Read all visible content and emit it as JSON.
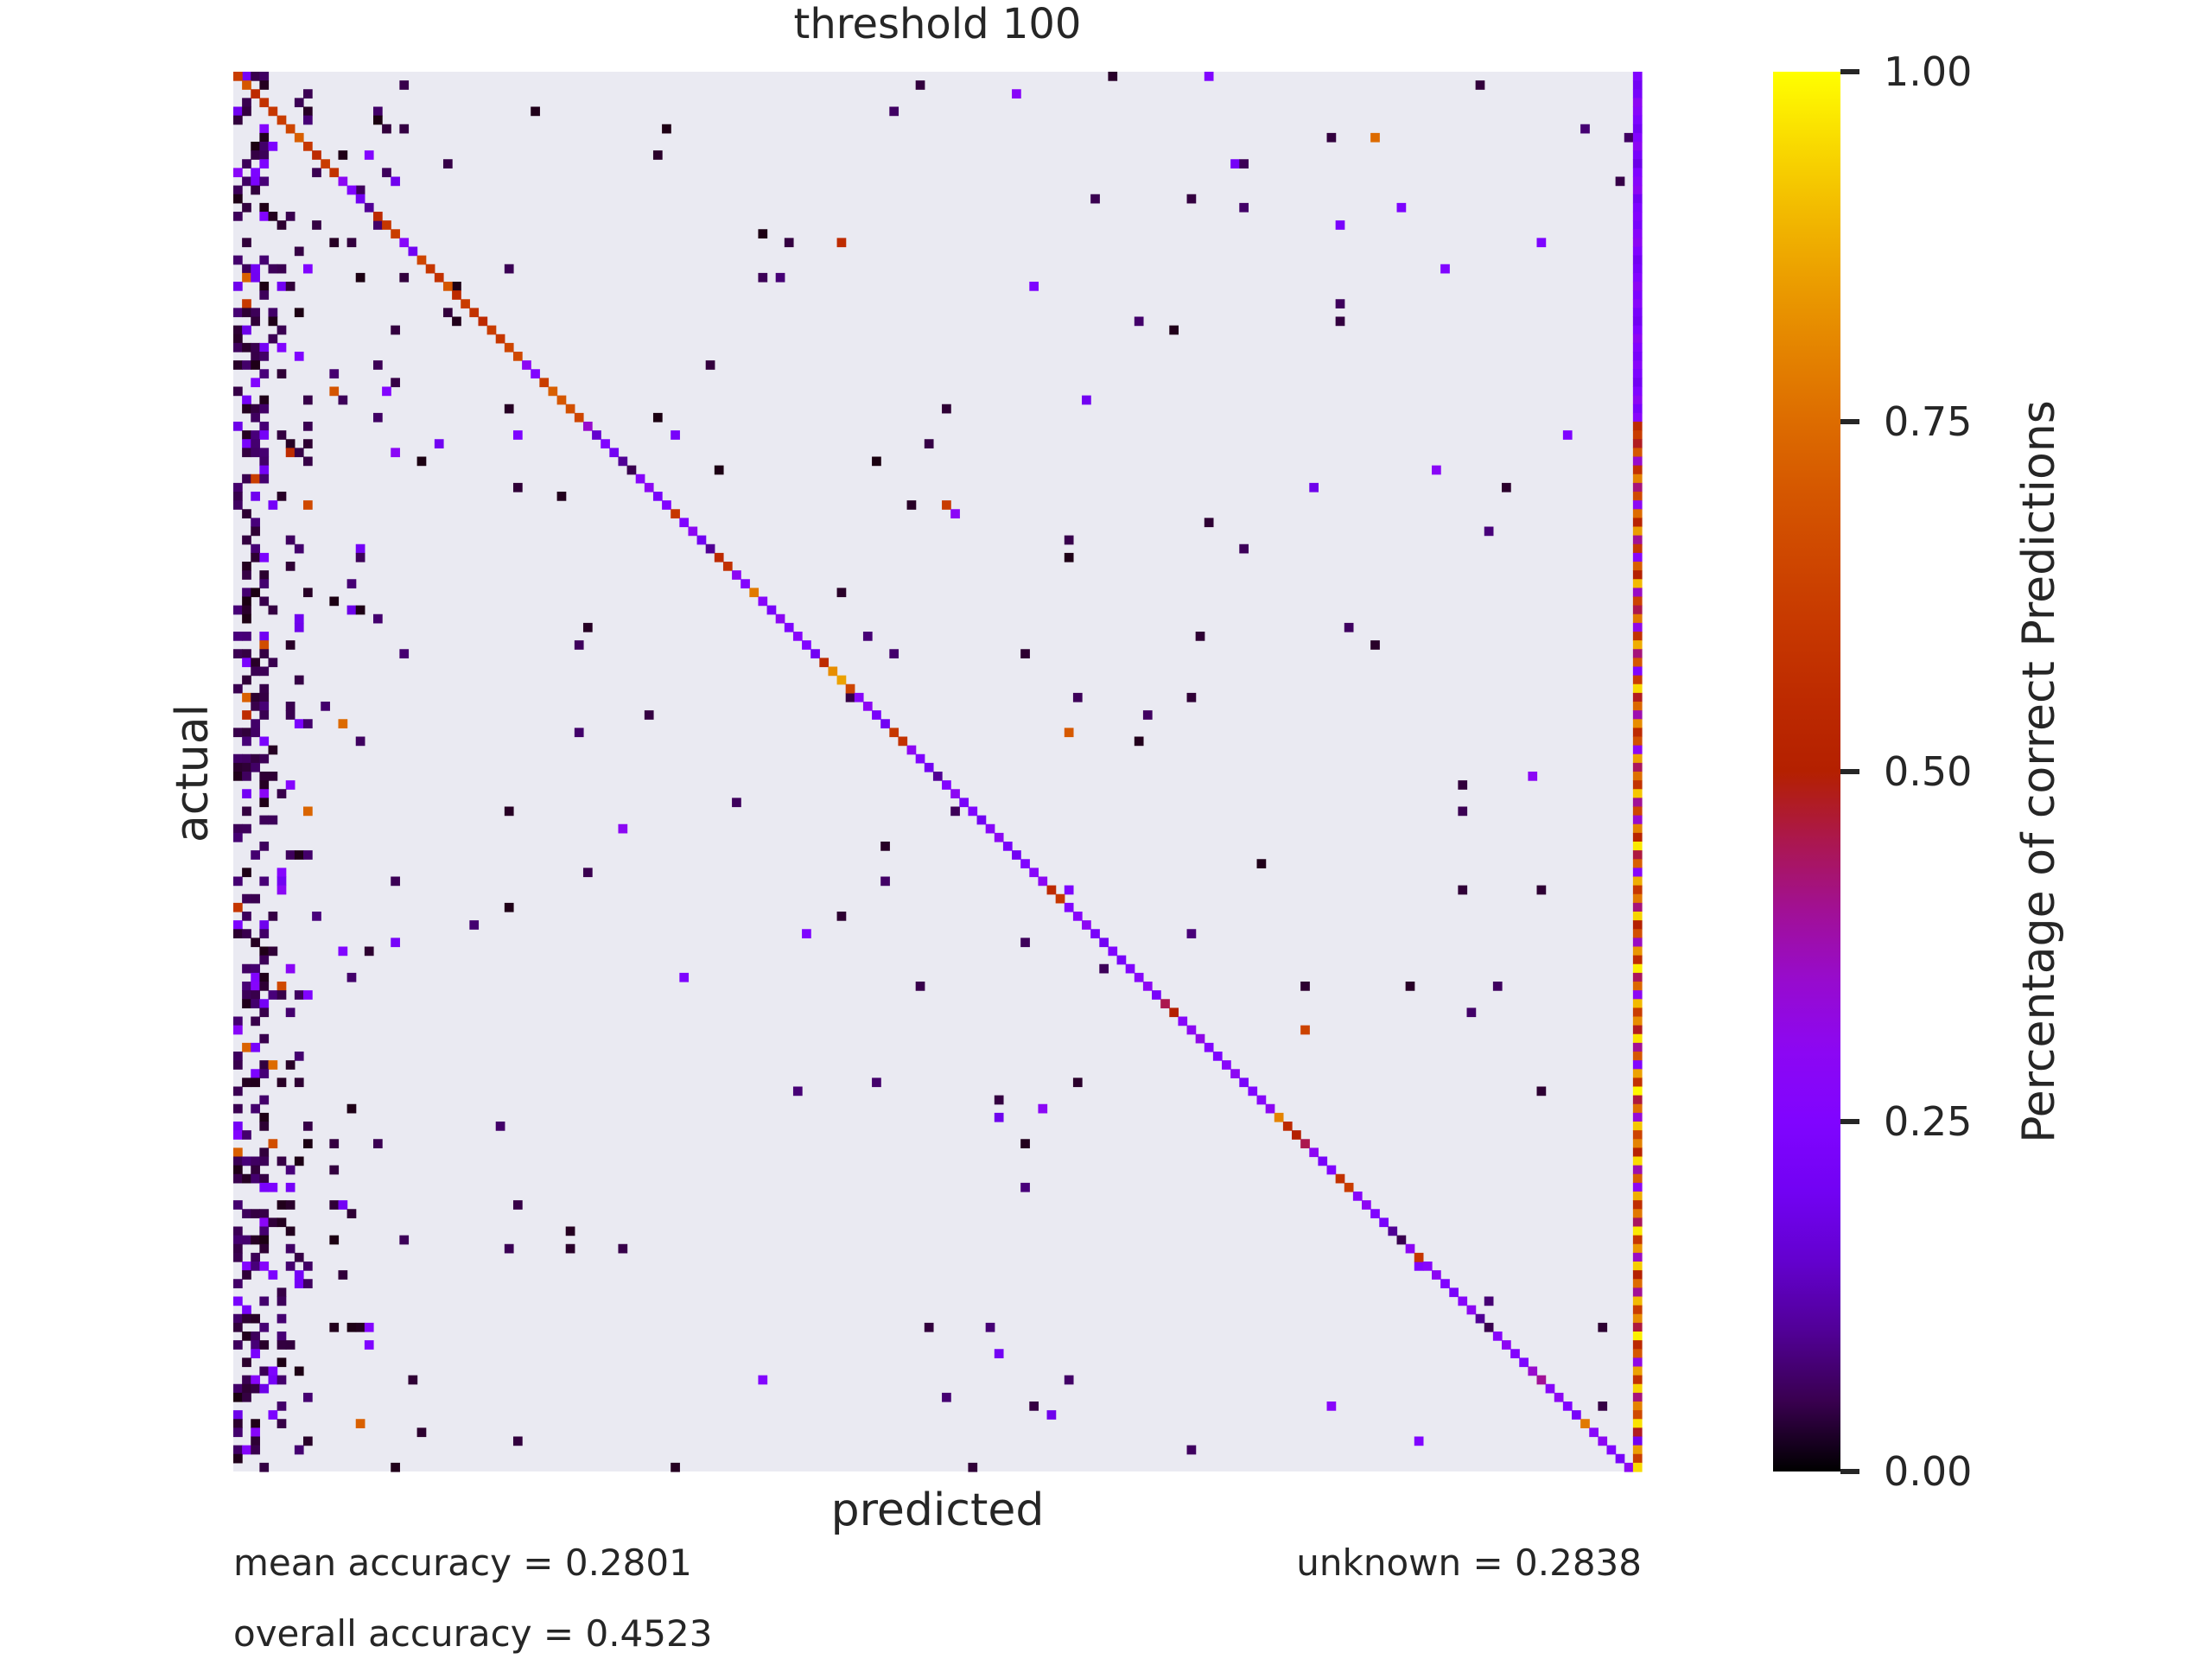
{
  "chart_data": {
    "type": "heatmap",
    "title": "threshold 100",
    "xlabel": "predicted",
    "ylabel": "actual",
    "n_classes": 160,
    "extra_column_label": "",
    "colorbar": {
      "label": "Percentage of correct Predictions",
      "colormap": "gnuplot",
      "range": [
        0,
        1
      ],
      "ticks": [
        0.0,
        0.25,
        0.5,
        0.75,
        1.0
      ],
      "tick_labels": [
        "0.00",
        "0.25",
        "0.50",
        "0.75",
        "1.00"
      ]
    },
    "background_color": "#eaeaf2",
    "diagonal": [
      0.62,
      0.7,
      0.55,
      0.58,
      0.6,
      0.62,
      0.65,
      0.72,
      0.6,
      0.55,
      0.62,
      0.58,
      0.3,
      0.25,
      0.2,
      0.1,
      0.55,
      0.6,
      0.62,
      0.28,
      0.2,
      0.65,
      0.6,
      0.58,
      0.7,
      0.55,
      0.62,
      0.58,
      0.55,
      0.62,
      0.6,
      0.65,
      0.66,
      0.3,
      0.25,
      0.62,
      0.72,
      0.7,
      0.68,
      0.65,
      0.35,
      0.15,
      0.25,
      0.2,
      0.1,
      0.05,
      0.28,
      0.3,
      0.22,
      0.25,
      0.6,
      0.25,
      0.3,
      0.2,
      0.1,
      0.55,
      0.58,
      0.3,
      0.26,
      0.78,
      0.28,
      0.22,
      0.3,
      0.24,
      0.28,
      0.25,
      0.2,
      0.55,
      0.82,
      0.86,
      0.65,
      0.28,
      0.3,
      0.22,
      0.2,
      0.6,
      0.58,
      0.3,
      0.25,
      0.2,
      0.1,
      0.26,
      0.3,
      0.22,
      0.25,
      0.2,
      0.28,
      0.3,
      0.22,
      0.2,
      0.25,
      0.28,
      0.3,
      0.55,
      0.6,
      0.25,
      0.28,
      0.3,
      0.22,
      0.2,
      0.25,
      0.22,
      0.26,
      0.28,
      0.3,
      0.22,
      0.45,
      0.5,
      0.28,
      0.3,
      0.32,
      0.26,
      0.24,
      0.28,
      0.3,
      0.22,
      0.25,
      0.28,
      0.3,
      0.8,
      0.55,
      0.5,
      0.45,
      0.3,
      0.22,
      0.25,
      0.58,
      0.62,
      0.28,
      0.3,
      0.25,
      0.22,
      0.1,
      0.05,
      0.3,
      0.6,
      0.28,
      0.3,
      0.25,
      0.22,
      0.28,
      0.3,
      0.1,
      0.05,
      0.28,
      0.3,
      0.26,
      0.24,
      0.35,
      0.4,
      0.28,
      0.3,
      0.25,
      0.22,
      0.78,
      0.28,
      0.3,
      0.25,
      0.22,
      0.3
    ],
    "unknown_column": [
      0.25,
      0.2,
      0.22,
      0.3,
      0.28,
      0.24,
      0.2,
      0.26,
      0.3,
      0.22,
      0.18,
      0.25,
      0.28,
      0.3,
      0.2,
      0.24,
      0.26,
      0.22,
      0.28,
      0.3,
      0.25,
      0.2,
      0.22,
      0.26,
      0.3,
      0.24,
      0.28,
      0.22,
      0.2,
      0.25,
      0.3,
      0.26,
      0.22,
      0.28,
      0.24,
      0.2,
      0.25,
      0.3,
      0.22,
      0.28,
      0.55,
      0.62,
      0.48,
      0.7,
      0.35,
      0.58,
      0.8,
      0.42,
      0.66,
      0.3,
      0.75,
      0.52,
      0.85,
      0.4,
      0.6,
      0.28,
      0.72,
      0.5,
      0.9,
      0.36,
      0.64,
      0.45,
      0.78,
      0.32,
      0.58,
      0.88,
      0.42,
      0.7,
      0.25,
      0.62,
      0.95,
      0.48,
      0.74,
      0.38,
      0.82,
      0.55,
      0.68,
      0.3,
      0.86,
      0.44,
      0.76,
      0.58,
      0.92,
      0.4,
      0.65,
      0.35,
      0.8,
      0.52,
      0.97,
      0.46,
      0.72,
      0.28,
      0.88,
      0.6,
      0.78,
      0.42,
      0.94,
      0.5,
      0.68,
      0.36,
      0.84,
      0.56,
      0.98,
      0.44,
      0.74,
      0.3,
      0.9,
      0.62,
      0.82,
      0.48,
      0.96,
      0.4,
      0.7,
      0.26,
      0.86,
      0.58,
      0.99,
      0.46,
      0.76,
      0.34,
      0.92,
      0.64,
      0.8,
      0.52,
      0.95,
      0.38,
      0.72,
      0.3,
      0.88,
      0.56,
      0.78,
      0.44,
      0.97,
      0.6,
      0.84,
      0.36,
      0.93,
      0.5,
      0.75,
      0.4,
      0.9,
      0.62,
      0.82,
      0.46,
      0.98,
      0.54,
      0.7,
      0.32,
      0.86,
      0.58,
      0.94,
      0.42,
      0.8,
      0.66,
      0.96,
      0.48,
      0.2,
      0.85,
      0.62,
      0.95
    ],
    "seed": 7,
    "stats": {
      "mean_accuracy": "mean accuracy = 0.2801",
      "overall_accuracy": "overall accuracy = 0.4523",
      "unknown": "unknown = 0.2838"
    }
  }
}
